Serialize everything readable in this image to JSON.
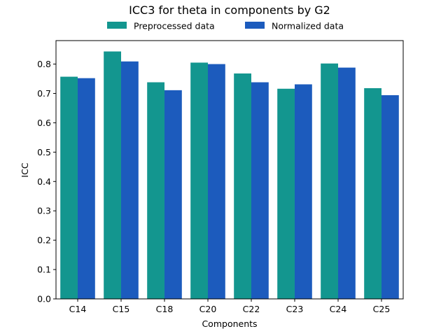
{
  "chart_data": {
    "type": "bar",
    "title": "ICC3 for theta in components by G2",
    "xlabel": "Components",
    "ylabel": "ICC",
    "categories": [
      "C14",
      "C15",
      "C18",
      "C20",
      "C22",
      "C23",
      "C24",
      "C25"
    ],
    "series": [
      {
        "name": "Preprocessed data",
        "color": "#13968f",
        "values": [
          0.757,
          0.843,
          0.738,
          0.805,
          0.768,
          0.716,
          0.802,
          0.718
        ]
      },
      {
        "name": "Normalized data",
        "color": "#1c5bbd",
        "values": [
          0.752,
          0.809,
          0.711,
          0.8,
          0.738,
          0.731,
          0.788,
          0.694
        ]
      }
    ],
    "ylim": [
      0.0,
      0.88
    ],
    "yticks": [
      "0.0",
      "0.1",
      "0.2",
      "0.3",
      "0.4",
      "0.5",
      "0.6",
      "0.7",
      "0.8"
    ],
    "grid": false,
    "legend_position": "top-center"
  }
}
